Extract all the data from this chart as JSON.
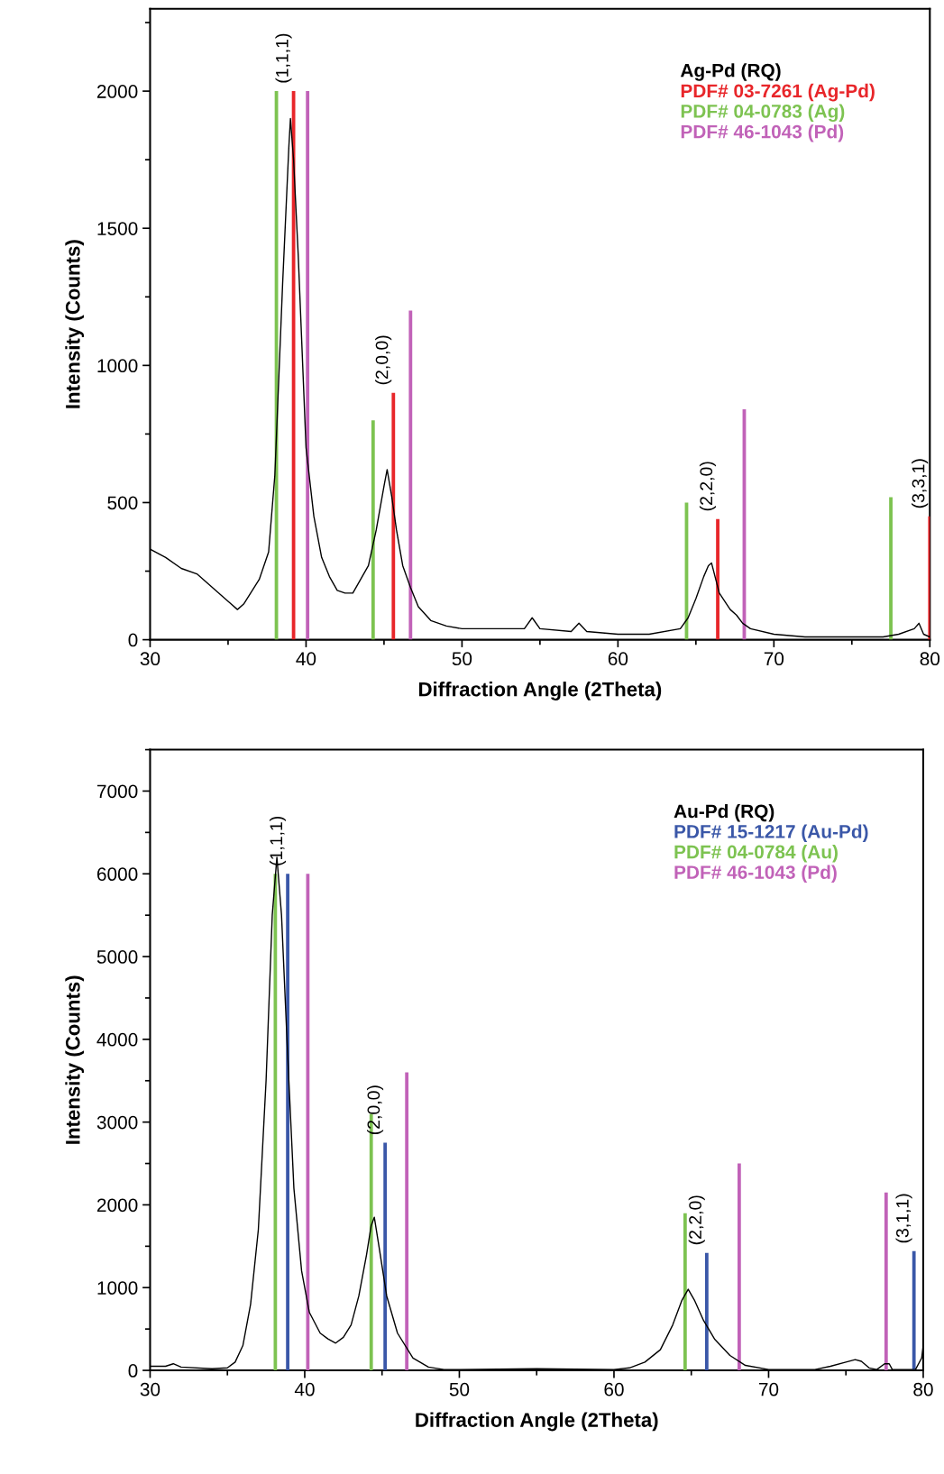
{
  "chart_data": [
    {
      "type": "line",
      "xlabel": "Diffraction Angle (2Theta)",
      "ylabel": "Intensity (Counts)",
      "xlim": [
        30,
        80
      ],
      "ylim": [
        0,
        2300
      ],
      "xticks": [
        30,
        40,
        50,
        60,
        70,
        80
      ],
      "yticks": [
        0,
        500,
        1000,
        1500,
        2000
      ],
      "legend": "top right",
      "series": [
        {
          "name": "Ag-Pd (RQ)",
          "color": "#000000",
          "x": [
            30,
            31,
            32,
            33,
            34,
            35,
            35.6,
            36,
            37,
            37.6,
            38,
            38.5,
            38.9,
            39.0,
            39.2,
            39.5,
            40,
            40.5,
            41,
            41.5,
            42,
            42.5,
            43,
            43.5,
            44,
            44.5,
            45,
            45.2,
            45.5,
            45.8,
            46.2,
            46.7,
            47.2,
            48,
            49,
            50,
            52,
            54,
            54.5,
            55,
            57,
            57.5,
            58,
            60,
            62,
            64,
            64.5,
            65,
            65.5,
            65.8,
            66.0,
            66.5,
            67.2,
            67.6,
            68,
            68.5,
            70,
            72,
            75,
            77,
            78,
            79,
            79.3,
            79.6,
            80
          ],
          "values": [
            330,
            300,
            260,
            240,
            190,
            140,
            110,
            130,
            220,
            320,
            600,
            1300,
            1800,
            1900,
            1750,
            1400,
            700,
            450,
            300,
            230,
            180,
            170,
            170,
            220,
            270,
            400,
            560,
            620,
            520,
            400,
            270,
            190,
            120,
            70,
            50,
            40,
            40,
            40,
            80,
            40,
            30,
            60,
            30,
            20,
            20,
            40,
            80,
            150,
            230,
            270,
            280,
            170,
            110,
            90,
            60,
            40,
            20,
            10,
            10,
            10,
            20,
            40,
            60,
            20,
            10
          ]
        },
        {
          "name": "PDF# 03-7261 (Ag-Pd)",
          "color": "#e8262a",
          "type": "bar",
          "x": [
            39.2,
            45.6,
            66.4,
            80.0
          ],
          "values": [
            2000,
            900,
            440,
            450
          ]
        },
        {
          "name": "PDF# 04-0783 (Ag)",
          "color": "#7dc351",
          "type": "bar",
          "x": [
            38.1,
            44.3,
            64.4,
            77.5
          ],
          "values": [
            2000,
            800,
            500,
            520
          ]
        },
        {
          "name": "PDF# 46-1043 (Pd)",
          "color": "#c162b8",
          "type": "bar",
          "x": [
            40.1,
            46.7,
            68.1
          ],
          "values": [
            2000,
            1200,
            840
          ]
        }
      ],
      "annotations": [
        {
          "text": "(1,1,1)",
          "x": 39.2,
          "y": 2000
        },
        {
          "text": "(2,0,0)",
          "x": 45.6,
          "y": 900
        },
        {
          "text": "(2,2,0)",
          "x": 66.4,
          "y": 440
        },
        {
          "text": "(3,3,1)",
          "x": 80.0,
          "y": 450
        }
      ]
    },
    {
      "type": "line",
      "xlabel": "Diffraction Angle (2Theta)",
      "ylabel": "Intensity (Counts)",
      "xlim": [
        30,
        80
      ],
      "ylim": [
        0,
        7500
      ],
      "xticks": [
        30,
        40,
        50,
        60,
        70,
        80
      ],
      "yticks": [
        0,
        1000,
        2000,
        3000,
        4000,
        5000,
        6000,
        7000
      ],
      "legend": "top right",
      "series": [
        {
          "name": "Au-Pd (RQ)",
          "color": "#000000",
          "x": [
            30,
            31,
            31.5,
            32,
            34,
            35,
            35.5,
            36,
            36.5,
            37,
            37.5,
            37.9,
            38.2,
            38.5,
            38.9,
            39.3,
            39.8,
            40.3,
            41,
            41.5,
            42,
            42.5,
            43,
            43.5,
            44,
            44.3,
            44.5,
            44.8,
            45.3,
            46,
            47,
            48,
            49,
            50,
            55,
            60,
            61,
            62,
            63,
            63.8,
            64.4,
            64.8,
            65.2,
            65.8,
            66.5,
            67.5,
            68.5,
            70,
            73,
            74,
            75,
            75.6,
            76,
            76.5,
            77,
            77.5,
            77.8,
            78,
            79.5,
            79.9,
            80
          ],
          "values": [
            50,
            50,
            80,
            40,
            20,
            30,
            100,
            300,
            800,
            1700,
            3500,
            5500,
            6200,
            5500,
            3800,
            2200,
            1200,
            700,
            450,
            380,
            330,
            400,
            550,
            900,
            1400,
            1750,
            1850,
            1500,
            900,
            450,
            150,
            40,
            10,
            10,
            20,
            10,
            30,
            100,
            250,
            550,
            850,
            980,
            850,
            600,
            380,
            180,
            60,
            10,
            10,
            50,
            100,
            130,
            110,
            30,
            10,
            80,
            80,
            10,
            10,
            150,
            300
          ]
        },
        {
          "name": "PDF# 15-1217 (Au-Pd)",
          "color": "#3a57a8",
          "type": "bar",
          "x": [
            38.9,
            45.2,
            66.0,
            79.4
          ],
          "values": [
            6000,
            2750,
            1420,
            1440
          ]
        },
        {
          "name": "PDF# 04-0784 (Au)",
          "color": "#7dc351",
          "type": "bar",
          "x": [
            38.1,
            44.3,
            64.6
          ],
          "values": [
            6000,
            3100,
            1900
          ]
        },
        {
          "name": "PDF# 46-1043 (Pd)",
          "color": "#c162b8",
          "type": "bar",
          "x": [
            40.2,
            46.6,
            68.1,
            77.6
          ],
          "values": [
            6000,
            3600,
            2500,
            2150
          ]
        }
      ],
      "annotations": [
        {
          "text": "(1,1,1)",
          "x": 38.9,
          "y": 6000
        },
        {
          "text": "(2,0,0)",
          "x": 45.2,
          "y": 2750
        },
        {
          "text": "(2,2,0)",
          "x": 66.0,
          "y": 1420
        },
        {
          "text": "(3,1,1)",
          "x": 79.4,
          "y": 1440
        }
      ]
    }
  ]
}
